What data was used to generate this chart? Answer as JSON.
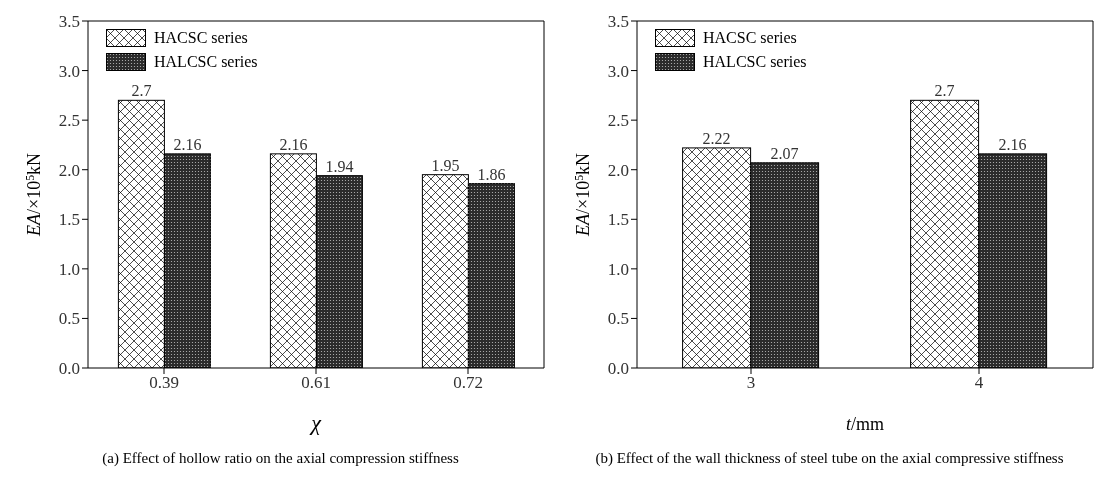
{
  "chart_data": [
    {
      "type": "bar",
      "title": "(a) Effect of hollow ratio on the axial compression stiffness",
      "xlabel": "χ",
      "ylabel": "EA/×10$^{5}$kN",
      "categories": [
        "0.39",
        "0.61",
        "0.72"
      ],
      "series": [
        {
          "name": "HACSC series",
          "color": "#ffffff",
          "values": [
            2.7,
            2.16,
            1.95
          ]
        },
        {
          "name": "HALCSC series",
          "color": "#2b2b2b",
          "values": [
            2.16,
            1.94,
            1.86
          ]
        }
      ],
      "data_labels": true,
      "ylim": [
        0,
        3.5
      ],
      "yticks": [
        {
          "value": 0,
          "label": "0.0"
        },
        0.5,
        {
          "value": 1,
          "label": "1.0"
        },
        1.5,
        {
          "value": 2,
          "label": "2.0"
        },
        2.5,
        {
          "value": 3,
          "label": "3.0"
        },
        3.5
      ],
      "grid": false,
      "legend": "top left"
    },
    {
      "type": "bar",
      "title": "(b) Effect of the wall thickness of steel tube on the axial compressive stiffness",
      "xlabel": "t/mm",
      "ylabel": "EA/×10$^{5}$kN",
      "categories": [
        "3",
        "4"
      ],
      "series": [
        {
          "name": "HACSC series",
          "color": "#ffffff",
          "values": [
            2.22,
            2.7
          ]
        },
        {
          "name": "HALCSC series",
          "color": "#2b2b2b",
          "values": [
            2.07,
            2.16
          ]
        }
      ],
      "data_labels": true,
      "ylim": [
        0,
        3.5
      ],
      "yticks": [
        {
          "value": 0,
          "label": "0.0"
        },
        0.5,
        {
          "value": 1,
          "label": "1.0"
        },
        1.5,
        {
          "value": 2,
          "label": "2.0"
        },
        2.5,
        {
          "value": 3,
          "label": "3.0"
        },
        3.5
      ],
      "grid": false,
      "legend": "top left"
    }
  ]
}
